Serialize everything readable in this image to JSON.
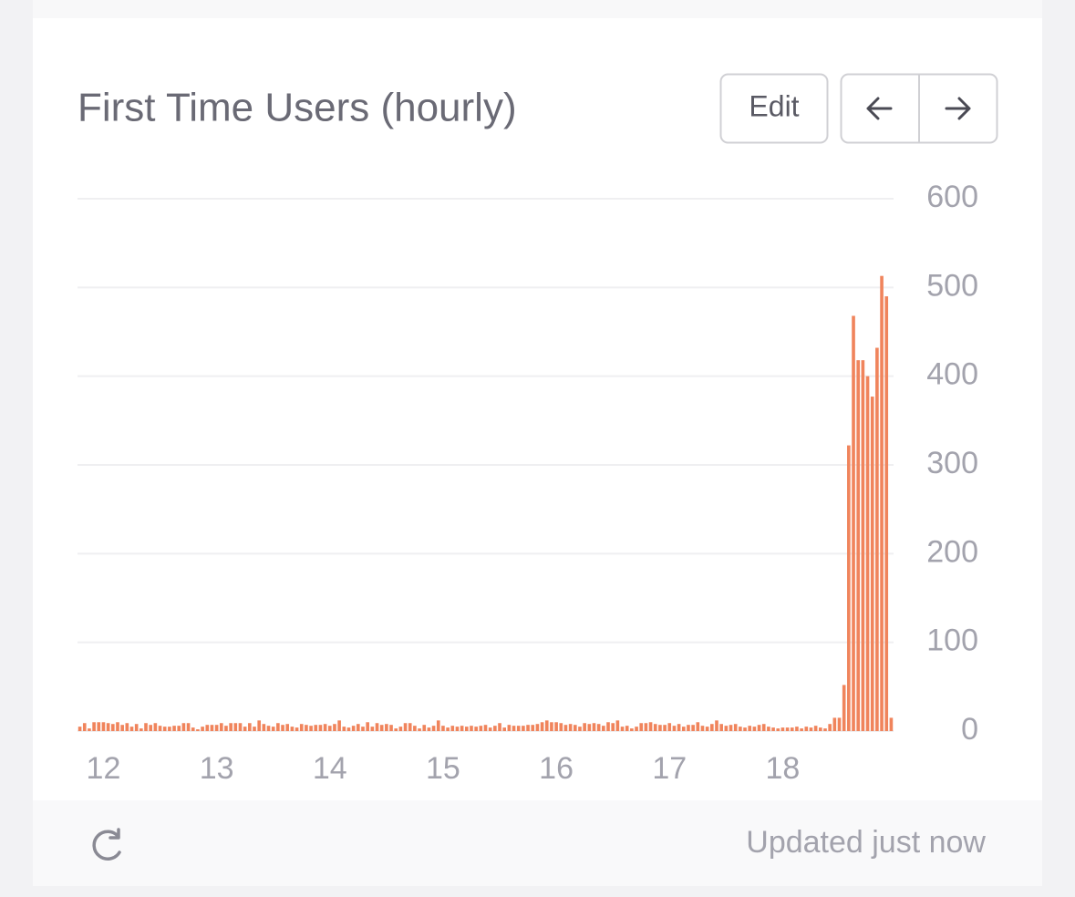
{
  "chart_data": {
    "type": "bar",
    "title": "First Time Users (hourly)",
    "color": "#f0845c",
    "categories": [
      null,
      null,
      null,
      null,
      null,
      "12",
      null,
      null,
      null,
      null,
      null,
      null,
      null,
      null,
      null,
      null,
      null,
      null,
      null,
      null,
      null,
      null,
      null,
      null,
      null,
      null,
      null,
      null,
      null,
      "13",
      null,
      null,
      null,
      null,
      null,
      null,
      null,
      null,
      null,
      null,
      null,
      null,
      null,
      null,
      null,
      null,
      null,
      null,
      null,
      null,
      null,
      null,
      null,
      "14",
      null,
      null,
      null,
      null,
      null,
      null,
      null,
      null,
      null,
      null,
      null,
      null,
      null,
      null,
      null,
      null,
      null,
      null,
      null,
      null,
      null,
      null,
      null,
      "15",
      null,
      null,
      null,
      null,
      null,
      null,
      null,
      null,
      null,
      null,
      null,
      null,
      null,
      null,
      null,
      null,
      null,
      null,
      null,
      null,
      null,
      null,
      null,
      "16",
      null,
      null,
      null,
      null,
      null,
      null,
      null,
      null,
      null,
      null,
      null,
      null,
      null,
      null,
      null,
      null,
      null,
      null,
      null,
      null,
      null,
      null,
      null,
      "17",
      null,
      null,
      null,
      null,
      null,
      null,
      null,
      null,
      null,
      null,
      null,
      null,
      null,
      null,
      null,
      null,
      null,
      null,
      null,
      null,
      null,
      null,
      null,
      "18",
      null,
      null,
      null,
      null,
      null,
      null,
      null,
      null,
      null,
      null,
      null,
      null,
      null,
      null,
      null,
      null,
      null,
      null,
      null,
      null,
      null,
      null,
      null
    ],
    "values": [
      5,
      9,
      3,
      10,
      10,
      10,
      9,
      8,
      10,
      7,
      9,
      5,
      8,
      3,
      9,
      7,
      9,
      6,
      5,
      5,
      6,
      6,
      9,
      9,
      4,
      2,
      5,
      7,
      7,
      7,
      9,
      6,
      9,
      9,
      9,
      5,
      9,
      5,
      12,
      8,
      6,
      5,
      9,
      7,
      8,
      5,
      4,
      8,
      7,
      6,
      7,
      7,
      8,
      6,
      8,
      12,
      5,
      4,
      6,
      8,
      5,
      10,
      5,
      9,
      7,
      8,
      7,
      3,
      5,
      9,
      9,
      6,
      3,
      7,
      4,
      6,
      12,
      6,
      4,
      6,
      5,
      6,
      5,
      6,
      5,
      6,
      7,
      4,
      6,
      9,
      4,
      7,
      6,
      6,
      6,
      7,
      7,
      8,
      10,
      12,
      10,
      10,
      9,
      7,
      8,
      7,
      5,
      9,
      8,
      9,
      8,
      6,
      10,
      9,
      12,
      5,
      6,
      3,
      5,
      9,
      9,
      10,
      8,
      7,
      7,
      9,
      6,
      8,
      5,
      7,
      7,
      10,
      6,
      5,
      8,
      12,
      8,
      6,
      7,
      8,
      5,
      4,
      6,
      5,
      7,
      8,
      5,
      4,
      3,
      4,
      4,
      4,
      5,
      3,
      5,
      4,
      6,
      4,
      3,
      8,
      15,
      15,
      52,
      322,
      468,
      418,
      418,
      400,
      377,
      432,
      513,
      490,
      15
    ],
    "ylim": [
      0,
      600
    ],
    "yticks": [
      0,
      100,
      200,
      300,
      400,
      500,
      600
    ],
    "grid": true
  },
  "buttons": {
    "edit": "Edit"
  },
  "footer": {
    "status": "Updated just now"
  }
}
